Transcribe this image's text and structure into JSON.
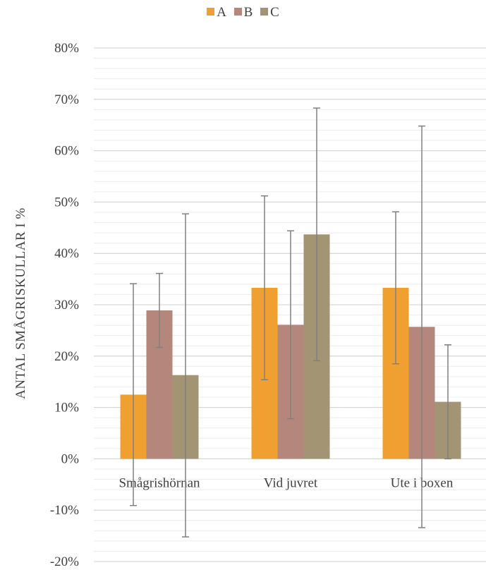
{
  "chart_data": {
    "type": "bar",
    "title": "",
    "xlabel": "",
    "ylabel": "ANTAL SMÅGRISKULLAR I %",
    "categories": [
      "Smågrishörnan",
      "Vid juvret",
      "Ute i boxen"
    ],
    "series": [
      {
        "name": "A",
        "color": "#F0A030",
        "values": [
          0.125,
          0.333,
          0.333
        ],
        "error_low": [
          -0.091,
          0.154,
          0.185
        ],
        "error_high": [
          0.341,
          0.512,
          0.481
        ]
      },
      {
        "name": "B",
        "color": "#B5867B",
        "values": [
          0.289,
          0.261,
          0.257
        ],
        "error_low": [
          0.217,
          0.078,
          -0.134
        ],
        "error_high": [
          0.361,
          0.444,
          0.648
        ]
      },
      {
        "name": "C",
        "color": "#A39573",
        "values": [
          0.163,
          0.437,
          0.111
        ],
        "error_low": [
          -0.152,
          0.191,
          0.0
        ],
        "error_high": [
          0.477,
          0.683,
          0.222
        ]
      }
    ],
    "ylim": [
      -0.2,
      0.8
    ],
    "yticks": [
      -0.2,
      -0.1,
      0,
      0.1,
      0.2,
      0.3,
      0.4,
      0.5,
      0.6,
      0.7,
      0.8
    ],
    "ytick_labels": [
      "-20%",
      "-10%",
      "0%",
      "10%",
      "20%",
      "30%",
      "40%",
      "50%",
      "60%",
      "70%",
      "80%"
    ],
    "minor_gridlines": true,
    "legend_position": "top-center",
    "error_bar_color": "#808080"
  }
}
